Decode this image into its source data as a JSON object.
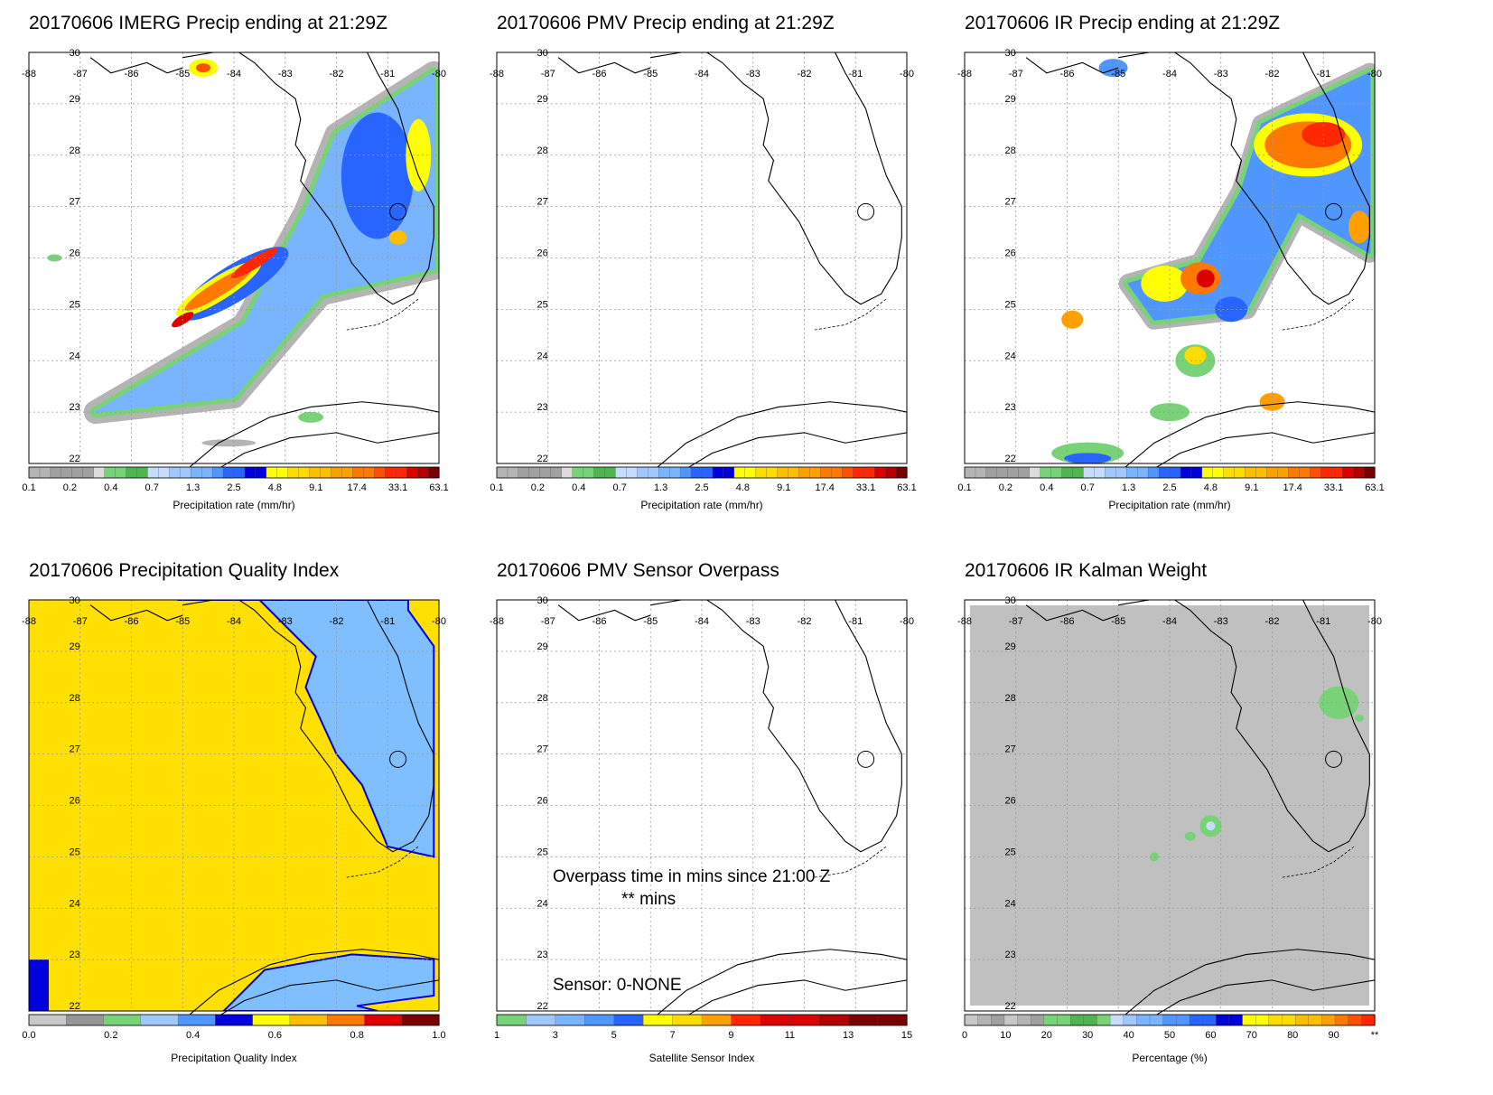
{
  "panels": [
    {
      "id": "imerg",
      "title": "20170606 IMERG Precip ending at 21:29Z",
      "cbar_title": "Precipitation rate (mm/hr)",
      "cbar_ticks": [
        "0.1",
        "0.2",
        "0.4",
        "0.7",
        "1.3",
        "2.5",
        "4.8",
        "9.1",
        "17.4",
        "33.1",
        "63.1"
      ],
      "cbar_style": "precip"
    },
    {
      "id": "pmv",
      "title": "20170606 PMV Precip ending at 21:29Z",
      "cbar_title": "Precipitation rate (mm/hr)",
      "cbar_ticks": [
        "0.1",
        "0.2",
        "0.4",
        "0.7",
        "1.3",
        "2.5",
        "4.8",
        "9.1",
        "17.4",
        "33.1",
        "63.1"
      ],
      "cbar_style": "precip"
    },
    {
      "id": "ir",
      "title": "20170606 IR Precip ending at 21:29Z",
      "cbar_title": "Precipitation rate (mm/hr)",
      "cbar_ticks": [
        "0.1",
        "0.2",
        "0.4",
        "0.7",
        "1.3",
        "2.5",
        "4.8",
        "9.1",
        "17.4",
        "33.1",
        "63.1"
      ],
      "cbar_style": "precip"
    },
    {
      "id": "pqi",
      "title": "20170606 Precipitation Quality Index",
      "cbar_title": "Precipitation Quality Index",
      "cbar_ticks": [
        "0.0",
        "0.2",
        "0.4",
        "0.6",
        "0.8",
        "1.0"
      ],
      "cbar_style": "pqi"
    },
    {
      "id": "sensor",
      "title": "20170606 PMV Sensor Overpass",
      "cbar_title": "Satellite Sensor Index",
      "cbar_ticks": [
        "1",
        "3",
        "5",
        "7",
        "9",
        "11",
        "13",
        "15"
      ],
      "cbar_style": "sensor",
      "overpass_text": "Overpass time in mins since 21:00 Z",
      "overpass_value": "** mins",
      "sensor_text": "Sensor:   0-NONE"
    },
    {
      "id": "kalman",
      "title": "20170606 IR Kalman Weight",
      "cbar_title": "Percentage (%)",
      "cbar_ticks": [
        "0",
        "10",
        "20",
        "30",
        "40",
        "50",
        "60",
        "70",
        "80",
        "90",
        "**"
      ],
      "cbar_style": "kalman"
    }
  ],
  "map": {
    "lon_labels": [
      "-88",
      "-87",
      "-86",
      "-85",
      "-84",
      "-83",
      "-82",
      "-81",
      "-80"
    ],
    "lat_labels": [
      "30",
      "29",
      "28",
      "27",
      "26",
      "25",
      "24",
      "23",
      "22"
    ],
    "lon_range": [
      -88,
      -80
    ],
    "lat_range": [
      22,
      30
    ]
  },
  "colors": {
    "gray": [
      "#b4b4b4",
      "#a0a0a0"
    ],
    "green": [
      "#78d278",
      "#50b450"
    ],
    "blue": [
      "#c8dcff",
      "#a0c8ff",
      "#78b4ff",
      "#5096ff",
      "#2864ff",
      "#0000dc"
    ],
    "warm": [
      "#ffff00",
      "#ffdc00",
      "#ffbe00",
      "#ffa000",
      "#ff7800",
      "#ff5000",
      "#ff2800",
      "#dc0000",
      "#b40000",
      "#780000"
    ],
    "pqi_yellow": "#ffe000",
    "pqi_blue": "#80bfff",
    "kalman_gray": "#c0c0c0"
  }
}
